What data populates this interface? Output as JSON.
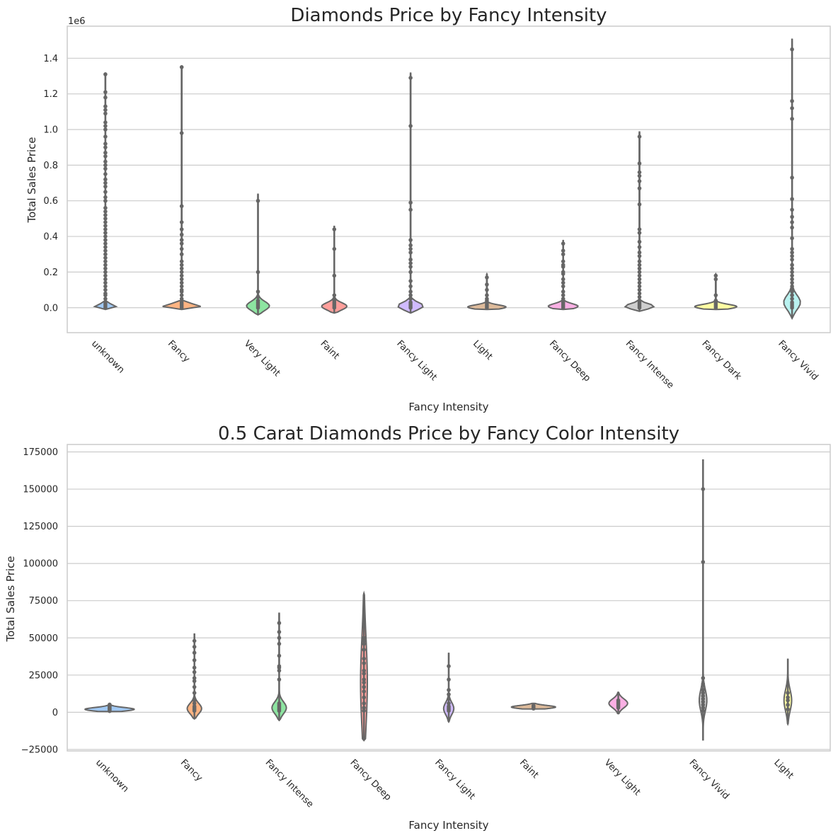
{
  "chart_data": [
    {
      "type": "violin",
      "title": "Diamonds Price by Fancy Intensity",
      "xlabel": "Fancy Intensity",
      "ylabel": "Total Sales Price",
      "y_offset_label": "1e6",
      "ylim": [
        -0.14,
        1.58
      ],
      "yticks": [
        0.0,
        0.2,
        0.4,
        0.6,
        0.8,
        1.0,
        1.2,
        1.4
      ],
      "ytick_labels": [
        "0.0",
        "0.2",
        "0.4",
        "0.6",
        "0.8",
        "1.0",
        "1.2",
        "1.4"
      ],
      "grid": true,
      "categories": [
        "unknown",
        "Fancy",
        "Very Light",
        "Faint",
        "Fancy Light",
        "Light",
        "Fancy Deep",
        "Fancy Intense",
        "Fancy Dark",
        "Fancy Vivid"
      ],
      "colors": [
        "#a1c9f4",
        "#ffb482",
        "#8de5a1",
        "#ff9f9b",
        "#d0bbff",
        "#debb9b",
        "#fab0e4",
        "#cfcfcf",
        "#fffea3",
        "#b9f2f0"
      ],
      "violins": [
        {
          "min": -0.01,
          "max": 1.32,
          "center": 0.008,
          "halfwidth": 0.28,
          "spread": 0.012,
          "points": [
            0.0,
            0.01,
            0.02,
            0.03,
            0.05,
            0.07,
            0.08,
            0.1,
            0.12,
            0.14,
            0.16,
            0.18,
            0.2,
            0.22,
            0.24,
            0.26,
            0.28,
            0.3,
            0.32,
            0.34,
            0.36,
            0.38,
            0.4,
            0.42,
            0.44,
            0.46,
            0.48,
            0.5,
            0.52,
            0.54,
            0.56,
            0.6,
            0.62,
            0.65,
            0.68,
            0.7,
            0.72,
            0.75,
            0.78,
            0.8,
            0.82,
            0.85,
            0.87,
            0.9,
            0.92,
            0.96,
            1.0,
            1.02,
            1.04,
            1.09,
            1.11,
            1.13,
            1.18,
            1.21,
            1.31
          ]
        },
        {
          "min": -0.01,
          "max": 1.36,
          "center": 0.008,
          "halfwidth": 0.5,
          "spread": 0.014,
          "points": [
            0.0,
            0.01,
            0.02,
            0.03,
            0.05,
            0.07,
            0.09,
            0.1,
            0.12,
            0.14,
            0.16,
            0.18,
            0.2,
            0.22,
            0.24,
            0.26,
            0.3,
            0.33,
            0.36,
            0.38,
            0.41,
            0.44,
            0.48,
            0.57,
            0.98,
            1.35
          ]
        },
        {
          "min": -0.04,
          "max": 0.64,
          "center": 0.01,
          "halfwidth": 0.3,
          "spread": 0.025,
          "points": [
            0.0,
            0.01,
            0.02,
            0.03,
            0.04,
            0.06,
            0.09,
            0.2,
            0.6
          ]
        },
        {
          "min": -0.03,
          "max": 0.46,
          "center": 0.008,
          "halfwidth": 0.33,
          "spread": 0.02,
          "points": [
            0.0,
            0.01,
            0.02,
            0.03,
            0.04,
            0.05,
            0.07,
            0.18,
            0.33,
            0.44
          ]
        },
        {
          "min": -0.03,
          "max": 1.32,
          "center": 0.01,
          "halfwidth": 0.34,
          "spread": 0.02,
          "points": [
            0.0,
            0.01,
            0.02,
            0.03,
            0.05,
            0.07,
            0.09,
            0.12,
            0.15,
            0.2,
            0.23,
            0.25,
            0.27,
            0.31,
            0.33,
            0.35,
            0.38,
            0.55,
            0.59,
            1.02,
            1.29
          ]
        },
        {
          "min": -0.01,
          "max": 0.19,
          "center": 0.004,
          "halfwidth": 0.5,
          "spread": 0.012,
          "points": [
            0.0,
            0.01,
            0.02,
            0.03,
            0.04,
            0.05,
            0.07,
            0.1,
            0.13,
            0.17
          ]
        },
        {
          "min": -0.01,
          "max": 0.38,
          "center": 0.008,
          "halfwidth": 0.39,
          "spread": 0.015,
          "points": [
            0.0,
            0.01,
            0.02,
            0.03,
            0.05,
            0.07,
            0.09,
            0.12,
            0.14,
            0.16,
            0.19,
            0.2,
            0.23,
            0.24,
            0.26,
            0.3,
            0.32,
            0.36
          ]
        },
        {
          "min": -0.02,
          "max": 0.99,
          "center": 0.008,
          "halfwidth": 0.38,
          "spread": 0.015,
          "points": [
            0.0,
            0.01,
            0.02,
            0.03,
            0.04,
            0.06,
            0.08,
            0.1,
            0.12,
            0.14,
            0.16,
            0.18,
            0.2,
            0.22,
            0.24,
            0.26,
            0.29,
            0.31,
            0.34,
            0.37,
            0.42,
            0.44,
            0.58,
            0.67,
            0.71,
            0.74,
            0.76,
            0.81,
            0.96
          ]
        },
        {
          "min": -0.01,
          "max": 0.19,
          "center": 0.006,
          "halfwidth": 0.55,
          "spread": 0.013,
          "points": [
            0.0,
            0.01,
            0.02,
            0.03,
            0.04,
            0.07,
            0.16,
            0.18
          ]
        },
        {
          "min": -0.06,
          "max": 1.51,
          "center": 0.03,
          "halfwidth": 0.22,
          "spread": 0.04,
          "points": [
            0.0,
            0.01,
            0.02,
            0.03,
            0.05,
            0.07,
            0.09,
            0.1,
            0.12,
            0.14,
            0.16,
            0.18,
            0.2,
            0.22,
            0.24,
            0.27,
            0.29,
            0.31,
            0.33,
            0.39,
            0.45,
            0.48,
            0.51,
            0.55,
            0.61,
            0.73,
            1.06,
            1.12,
            1.16,
            1.45
          ]
        }
      ]
    },
    {
      "type": "violin",
      "title": "0.5 Carat Diamonds Price by Fancy Color Intensity",
      "xlabel": "Fancy Intensity",
      "ylabel": "Total Sales Price",
      "ylim": [
        -26000,
        180000
      ],
      "yticks": [
        -25000,
        0,
        25000,
        50000,
        75000,
        100000,
        125000,
        150000,
        175000
      ],
      "ytick_labels": [
        "−25000",
        "0",
        "25000",
        "50000",
        "75000",
        "100000",
        "125000",
        "150000",
        "175000"
      ],
      "grid": true,
      "categories": [
        "unknown",
        "Fancy",
        "Fancy Intense",
        "Fancy Deep",
        "Fancy Light",
        "Faint",
        "Very Light",
        "Fancy Vivid",
        "Light"
      ],
      "colors": [
        "#a1c9f4",
        "#ffb482",
        "#8de5a1",
        "#ff9f9b",
        "#d0bbff",
        "#debb9b",
        "#fab0e4",
        "#cfcfcf",
        "#fffea3"
      ],
      "violins": [
        {
          "min": 500,
          "max": 5500,
          "center": 2000,
          "halfwidth": 0.58,
          "spread": 1200,
          "points": [
            800,
            1500,
            2000,
            2500,
            3000,
            3500,
            4000,
            4500,
            5200
          ]
        },
        {
          "min": -4500,
          "max": 53000,
          "center": 2500,
          "halfwidth": 0.17,
          "spread": 3500,
          "points": [
            1000,
            2000,
            3000,
            4000,
            6000,
            8000,
            13000,
            17000,
            21000,
            23000,
            27000,
            30000,
            35000,
            40000,
            44000,
            48000
          ]
        },
        {
          "min": -5500,
          "max": 67000,
          "center": 3000,
          "halfwidth": 0.17,
          "spread": 4000,
          "points": [
            1000,
            2000,
            3000,
            4000,
            5000,
            6000,
            22000,
            28000,
            30000,
            31000,
            38000,
            46000,
            50000,
            54000,
            60000
          ]
        },
        {
          "min": -19000,
          "max": 80000,
          "center": 20000,
          "halfwidth": 0.08,
          "spread": 30000,
          "points": [
            1000,
            3000,
            6000,
            10000,
            14000,
            17000,
            20000,
            22000,
            26000,
            28000,
            33000,
            36000,
            42000,
            46000,
            48000,
            50000,
            60000
          ]
        },
        {
          "min": -6500,
          "max": 40000,
          "center": 2500,
          "halfwidth": 0.12,
          "spread": 4000,
          "points": [
            1000,
            2000,
            3000,
            4000,
            6000,
            9000,
            12000,
            15000,
            22000,
            31000
          ]
        },
        {
          "min": 2200,
          "max": 6000,
          "center": 3500,
          "halfwidth": 0.52,
          "spread": 1100,
          "points": [
            2500,
            3000,
            3500,
            4000,
            4500
          ]
        },
        {
          "min": -1000,
          "max": 13500,
          "center": 6000,
          "halfwidth": 0.22,
          "spread": 3000,
          "points": [
            3000,
            4000,
            5000,
            6000,
            7000,
            8000
          ]
        },
        {
          "min": -19000,
          "max": 170000,
          "center": 8000,
          "halfwidth": 0.09,
          "spread": 7000,
          "points": [
            1000,
            3000,
            5000,
            7000,
            9000,
            11000,
            13000,
            15000,
            19000,
            23000,
            101000,
            150000
          ]
        },
        {
          "min": -8000,
          "max": 36000,
          "center": 8000,
          "halfwidth": 0.09,
          "spread": 7000,
          "points": [
            2000,
            5000,
            8000,
            10000,
            13000
          ]
        }
      ]
    }
  ]
}
